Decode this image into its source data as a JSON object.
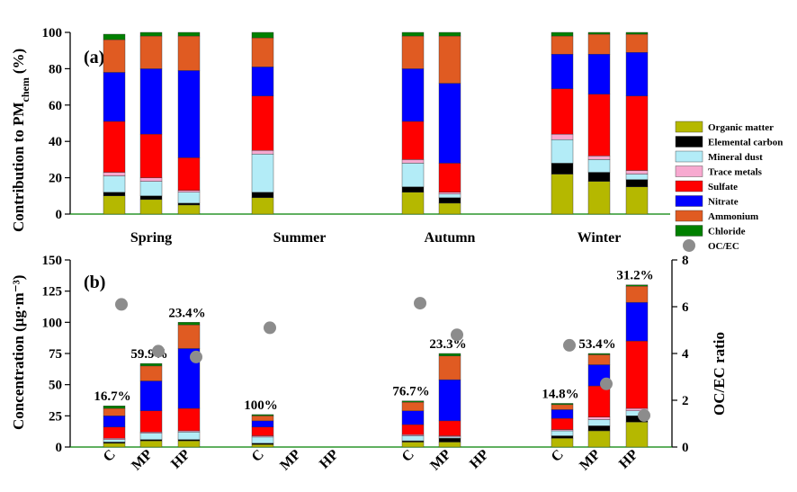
{
  "legend": {
    "items": [
      {
        "label": "Organic matter",
        "color": "#b5b800"
      },
      {
        "label": "Elemental carbon",
        "color": "#000000"
      },
      {
        "label": "Mineral dust",
        "color": "#b3ecf7"
      },
      {
        "label": "Trace metals",
        "color": "#f7a9d0"
      },
      {
        "label": "Sulfate",
        "color": "#ff0000"
      },
      {
        "label": "Nitrate",
        "color": "#0000ff"
      },
      {
        "label": "Ammonium",
        "color": "#e05b22"
      },
      {
        "label": "Chloride",
        "color": "#008000"
      }
    ],
    "ocec_label": "OC/EC",
    "ocec_color": "#8c8c8c"
  },
  "chart_data": [
    {
      "type": "bar",
      "stacked": true,
      "panel": "(a)",
      "ylabel_main": "Contribution to PM",
      "ylabel_sub": "chem",
      "ylabel_unit": "(%)",
      "ylim": [
        0,
        100
      ],
      "yticks": [
        "0",
        "20",
        "40",
        "60",
        "80",
        "100"
      ],
      "groups": [
        "Spring",
        "Summer",
        "Autumn",
        "Winter"
      ],
      "bars": [
        {
          "group": "Spring",
          "values": [
            10,
            2,
            9,
            2,
            28,
            27,
            18,
            3
          ]
        },
        {
          "group": "Spring",
          "values": [
            8,
            2,
            8,
            2,
            24,
            36,
            18,
            2
          ]
        },
        {
          "group": "Spring",
          "values": [
            5,
            1,
            6,
            1,
            18,
            48,
            19,
            2
          ]
        },
        {
          "group": "Summer",
          "values": [
            9,
            3,
            21,
            2,
            30,
            16,
            16,
            3
          ]
        },
        {
          "group": "Autumn",
          "values": [
            12,
            3,
            13,
            2,
            21,
            29,
            18,
            2
          ]
        },
        {
          "group": "Autumn",
          "values": [
            6,
            3,
            2,
            1,
            16,
            44,
            26,
            2
          ]
        },
        {
          "group": "Winter",
          "values": [
            22,
            6,
            13,
            3,
            25,
            19,
            10,
            2
          ]
        },
        {
          "group": "Winter",
          "values": [
            18,
            5,
            7,
            2,
            34,
            22,
            11,
            1
          ]
        },
        {
          "group": "Winter",
          "values": [
            15,
            4,
            3,
            2,
            41,
            24,
            10,
            1
          ]
        }
      ]
    },
    {
      "type": "bar",
      "stacked": true,
      "panel": "(b)",
      "ylabel_left": "Concentration (μg·m⁻³)",
      "ylabel_right": "OC/EC ratio",
      "ylim": [
        0,
        150
      ],
      "yticks": [
        "0",
        "25",
        "50",
        "75",
        "100",
        "125",
        "150"
      ],
      "y2lim": [
        0,
        8
      ],
      "y2ticks": [
        "0",
        "2",
        "4",
        "6",
        "8"
      ],
      "groups": [
        "Spring",
        "Summer",
        "Autumn",
        "Winter"
      ],
      "categories": [
        "C",
        "MP",
        "HP"
      ],
      "bars": [
        {
          "group": "Spring",
          "cat": "C",
          "values": [
            3,
            1,
            2,
            1,
            9,
            9,
            6,
            2
          ],
          "pct": "16.7%",
          "ocec": 6.1
        },
        {
          "group": "Spring",
          "cat": "MP",
          "values": [
            5,
            1,
            5,
            1,
            17,
            24,
            12,
            2
          ],
          "pct": "59.9%",
          "ocec": 4.1
        },
        {
          "group": "Spring",
          "cat": "HP",
          "values": [
            5,
            1,
            6,
            1,
            18,
            48,
            19,
            2
          ],
          "pct": "23.4%",
          "ocec": 3.85
        },
        {
          "group": "Summer",
          "cat": "C",
          "values": [
            2,
            1,
            5,
            1,
            7,
            5,
            4,
            1
          ],
          "pct": "100%",
          "ocec": 5.1
        },
        {
          "group": "Summer",
          "cat": "MP",
          "values": null,
          "pct": "",
          "ocec": null
        },
        {
          "group": "Summer",
          "cat": "HP",
          "values": null,
          "pct": "",
          "ocec": null
        },
        {
          "group": "Autumn",
          "cat": "C",
          "values": [
            4,
            1,
            4,
            1,
            8,
            11,
            7,
            1
          ],
          "pct": "76.7%",
          "ocec": 6.15
        },
        {
          "group": "Autumn",
          "cat": "MP",
          "values": [
            4,
            3,
            1,
            1,
            12,
            33,
            19,
            2
          ],
          "pct": "23.3%",
          "ocec": 4.8
        },
        {
          "group": "Autumn",
          "cat": "HP",
          "values": null,
          "pct": "",
          "ocec": null
        },
        {
          "group": "Winter",
          "cat": "C",
          "values": [
            7,
            2,
            4,
            1,
            9,
            7,
            4,
            1
          ],
          "pct": "14.8%",
          "ocec": 4.35
        },
        {
          "group": "Winter",
          "cat": "MP",
          "values": [
            13,
            4,
            5,
            2,
            25,
            17,
            8,
            1
          ],
          "pct": "53.4%",
          "ocec": 2.7
        },
        {
          "group": "Winter",
          "cat": "HP",
          "values": [
            20,
            5,
            4,
            2,
            54,
            31,
            13,
            1
          ],
          "pct": "31.2%",
          "ocec": 1.35
        }
      ]
    }
  ]
}
